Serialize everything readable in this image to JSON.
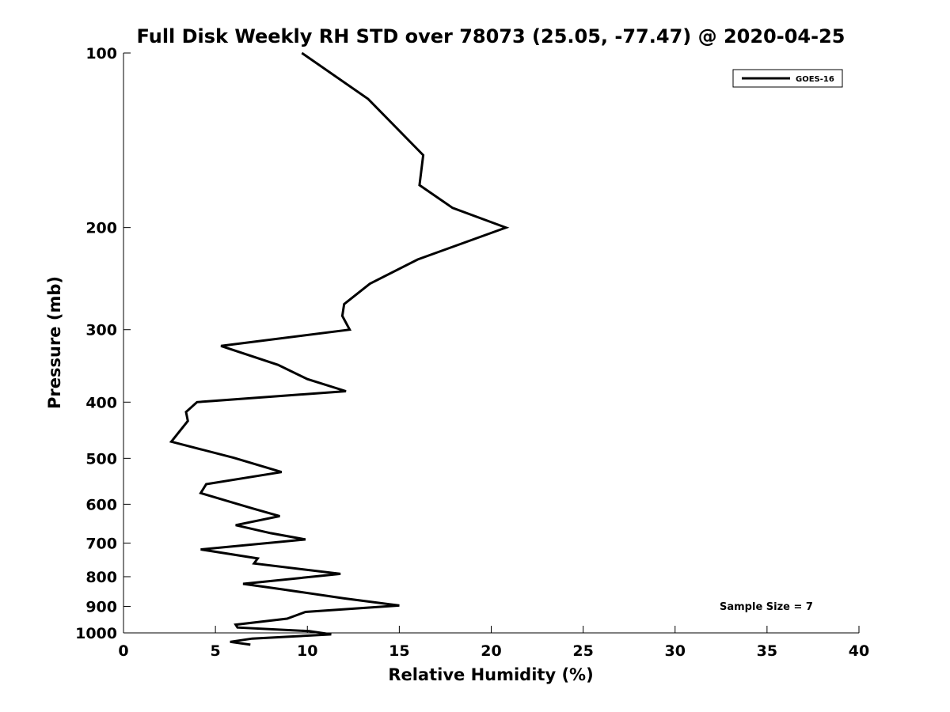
{
  "chart_data": {
    "type": "line",
    "title": "Full Disk Weekly RH STD over 78073 (25.05, -77.47) @ 2020-04-25",
    "xlabel": "Relative Humidity (%)",
    "ylabel": "Pressure (mb)",
    "xlim": [
      0,
      40
    ],
    "ylim": [
      100,
      1000
    ],
    "y_scale": "log",
    "y_reversed": true,
    "grid": false,
    "legend_position": "top-right",
    "x_ticks": [
      0,
      5,
      10,
      15,
      20,
      25,
      30,
      35,
      40
    ],
    "x_tick_labels": [
      "0",
      "5",
      "10",
      "15",
      "20",
      "25",
      "30",
      "35",
      "40"
    ],
    "y_ticks": [
      100,
      200,
      300,
      400,
      500,
      600,
      700,
      800,
      900,
      1000
    ],
    "y_tick_labels": [
      "100",
      "200",
      "300",
      "400",
      "500",
      "600",
      "700",
      "800",
      "900",
      "1000"
    ],
    "series": [
      {
        "name": "GOES-16",
        "color": "#000000",
        "x": [
          9.7,
          13.3,
          16.3,
          16.1,
          17.9,
          20.8,
          16.0,
          13.4,
          12.0,
          11.9,
          12.3,
          5.3,
          8.4,
          10.0,
          12.1,
          4.0,
          3.4,
          3.5,
          2.6,
          6.0,
          8.6,
          4.5,
          4.2,
          7.0,
          8.5,
          6.1,
          8.0,
          9.9,
          4.2,
          7.3,
          7.1,
          11.8,
          6.5,
          8.5,
          12.0,
          15.0,
          9.9,
          8.9,
          6.1,
          6.2,
          10.1,
          11.3,
          7.0,
          5.8,
          6.9
        ],
        "y": [
          100,
          120,
          150,
          169,
          185,
          200,
          227,
          250,
          271,
          284,
          300,
          320,
          345,
          365,
          383,
          400,
          416,
          431,
          468,
          499,
          528,
          554,
          574,
          610,
          629,
          652,
          673,
          690,
          718,
          744,
          759,
          791,
          823,
          840,
          872,
          897,
          920,
          945,
          968,
          979,
          993,
          1006,
          1023,
          1036,
          1048
        ]
      }
    ],
    "annotations": [
      {
        "text": "Sample Size = 7"
      }
    ]
  }
}
